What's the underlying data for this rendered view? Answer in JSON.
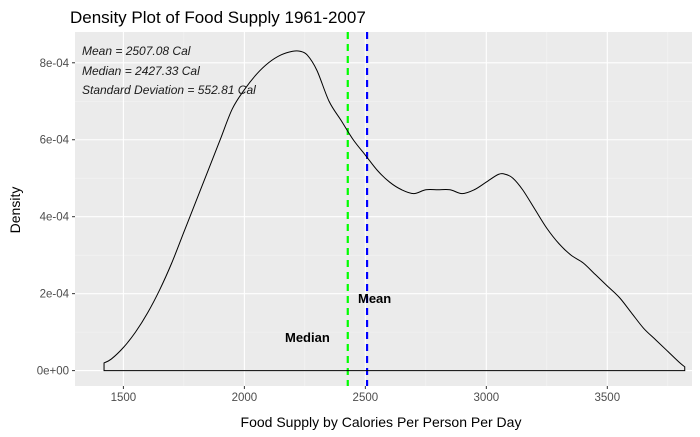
{
  "chart_data": {
    "type": "area",
    "title": "Density Plot of Food Supply 1961-2007",
    "xlabel": "Food Supply by Calories Per Person Per Day",
    "ylabel": "Density",
    "xlim": [
      1300,
      3850
    ],
    "ylim": [
      -4e-05,
      0.00088
    ],
    "xticks": [
      1500,
      2000,
      2500,
      3000,
      3500
    ],
    "xtick_labels": [
      "1500",
      "2000",
      "2500",
      "3000",
      "3500"
    ],
    "yticks": [
      0,
      0.0002,
      0.0004,
      0.0006,
      0.0008
    ],
    "ytick_labels": [
      "0e+00",
      "2e-04",
      "4e-04",
      "6e-04",
      "8e-04"
    ],
    "grid": true,
    "background": "#ebebeb",
    "series": [
      {
        "x": [
          1420,
          1450,
          1500,
          1550,
          1600,
          1650,
          1700,
          1750,
          1800,
          1850,
          1900,
          1950,
          2000,
          2050,
          2100,
          2150,
          2200,
          2230,
          2260,
          2300,
          2350,
          2400,
          2450,
          2500,
          2550,
          2600,
          2650,
          2700,
          2750,
          2800,
          2850,
          2900,
          2950,
          3000,
          3050,
          3080,
          3110,
          3150,
          3200,
          3250,
          3300,
          3350,
          3400,
          3450,
          3500,
          3550,
          3600,
          3650,
          3700,
          3750,
          3800,
          3820
        ],
        "y": [
          2e-05,
          3e-05,
          6e-05,
          0.0001,
          0.00015,
          0.00021,
          0.00028,
          0.00036,
          0.00044,
          0.00052,
          0.0006,
          0.00068,
          0.00073,
          0.00077,
          0.0008,
          0.00082,
          0.00083,
          0.00083,
          0.00082,
          0.00078,
          0.0007,
          0.00065,
          0.0006,
          0.00056,
          0.00052,
          0.00049,
          0.00047,
          0.00046,
          0.00047,
          0.00047,
          0.00047,
          0.00046,
          0.00047,
          0.00049,
          0.00051,
          0.00051,
          0.0005,
          0.00047,
          0.00042,
          0.00037,
          0.00033,
          0.0003,
          0.00028,
          0.00025,
          0.00022,
          0.00019,
          0.00015,
          0.00011,
          8e-05,
          5e-05,
          2e-05,
          1e-05
        ],
        "color": "#000000"
      }
    ],
    "reference_lines": [
      {
        "label": "Median",
        "value": 2427.33,
        "color": "#00ff00",
        "style": "dashed"
      },
      {
        "label": "Mean",
        "value": 2507.08,
        "color": "#0000ff",
        "style": "dashed"
      }
    ],
    "annotations": {
      "mean": "Mean = 2507.08 Cal",
      "median": "Median = 2427.33 Cal",
      "sd": "Standard Deviation = 552.81 Cal"
    }
  }
}
